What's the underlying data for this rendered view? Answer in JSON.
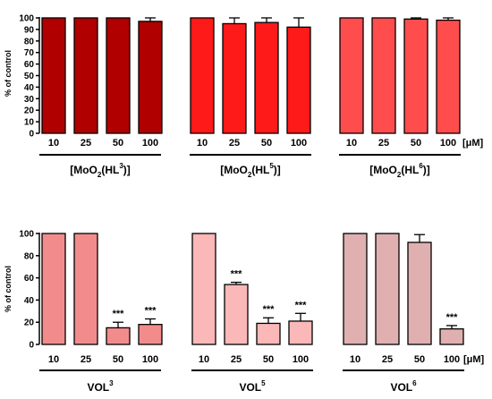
{
  "chart_data": [
    {
      "type": "bar",
      "ylabel": "% of control",
      "ylim": [
        0,
        100
      ],
      "yticks": [
        0,
        10,
        20,
        30,
        40,
        50,
        60,
        70,
        80,
        90,
        100
      ],
      "unit": "[μM]",
      "groups": [
        {
          "label": "[MoO2(HL3)]",
          "label_base": "[MoO",
          "label_sub1": "2",
          "label_mid": "(HL",
          "label_sup": "3",
          "label_end": ")]",
          "color": "#b00000",
          "categories": [
            "10",
            "25",
            "50",
            "100"
          ],
          "values": [
            100,
            100,
            100,
            97
          ],
          "errors": [
            0,
            0,
            0,
            3
          ],
          "significance": [
            "",
            "",
            "",
            ""
          ]
        },
        {
          "label": "[MoO2(HL5)]",
          "label_base": "[MoO",
          "label_sub1": "2",
          "label_mid": "(HL",
          "label_sup": "5",
          "label_end": ")]",
          "color": "#ff1a1a",
          "categories": [
            "10",
            "25",
            "50",
            "100"
          ],
          "values": [
            100,
            95,
            96,
            92
          ],
          "errors": [
            0,
            5,
            4,
            8
          ],
          "significance": [
            "",
            "",
            "",
            ""
          ]
        },
        {
          "label": "[MoO2(HL6)]",
          "label_base": "[MoO",
          "label_sub1": "2",
          "label_mid": "(HL",
          "label_sup": "6",
          "label_end": ")]",
          "color": "#ff4d4d",
          "categories": [
            "10",
            "25",
            "50",
            "100"
          ],
          "values": [
            100,
            100,
            99,
            98
          ],
          "errors": [
            0,
            0,
            1,
            2
          ],
          "significance": [
            "",
            "",
            "",
            ""
          ]
        }
      ]
    },
    {
      "type": "bar",
      "ylabel": "% of control",
      "ylim": [
        0,
        100
      ],
      "yticks": [
        0,
        20,
        40,
        60,
        80,
        100
      ],
      "unit": "[μM]",
      "groups": [
        {
          "label": "VOL3",
          "label_base": "VOL",
          "label_sup": "3",
          "color": "#f28c8c",
          "categories": [
            "10",
            "25",
            "50",
            "100"
          ],
          "values": [
            100,
            100,
            15,
            18
          ],
          "errors": [
            0,
            0,
            5,
            5
          ],
          "significance": [
            "",
            "",
            "***",
            "***"
          ]
        },
        {
          "label": "VOL5",
          "label_base": "VOL",
          "label_sup": "5",
          "color": "#fbb8b8",
          "categories": [
            "10",
            "25",
            "50",
            "100"
          ],
          "values": [
            100,
            54,
            19,
            21
          ],
          "errors": [
            0,
            2,
            5,
            7
          ],
          "significance": [
            "",
            "***",
            "***",
            "***"
          ]
        },
        {
          "label": "VOL6",
          "label_base": "VOL",
          "label_sup": "6",
          "color": "#e0b0b0",
          "categories": [
            "10",
            "25",
            "50",
            "100"
          ],
          "values": [
            100,
            100,
            92,
            14
          ],
          "errors": [
            0,
            0,
            7,
            3
          ],
          "significance": [
            "",
            "",
            "",
            "***"
          ]
        }
      ]
    }
  ]
}
